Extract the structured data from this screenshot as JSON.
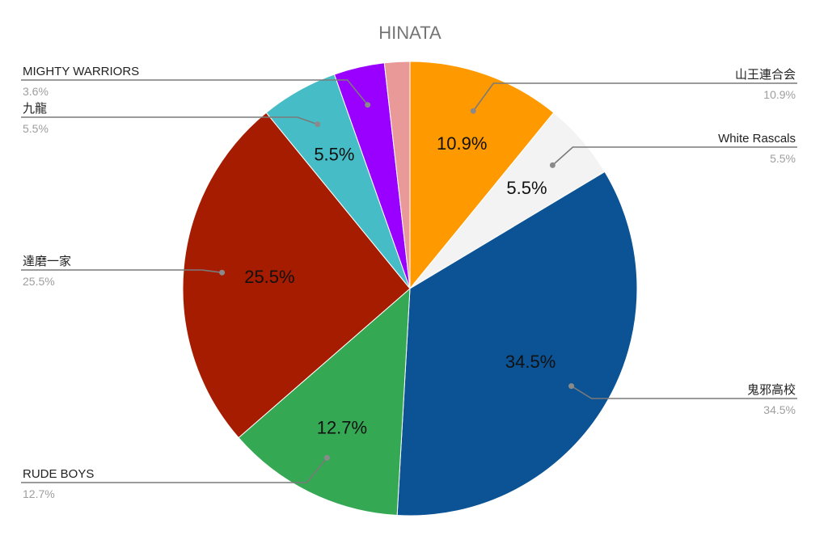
{
  "chart_data": {
    "type": "pie",
    "title": "HINATA",
    "start_angle_deg": 0,
    "direction": "clockwise",
    "slices": [
      {
        "name": "山王連合会",
        "value": 10.9,
        "label": "10.9%",
        "color": "#ff9900",
        "callout_side": "right"
      },
      {
        "name": "White Rascals",
        "value": 5.5,
        "label": "5.5%",
        "color": "#f3f3f3",
        "callout_side": "right"
      },
      {
        "name": "鬼邪高校",
        "value": 34.5,
        "label": "34.5%",
        "color": "#0b5394",
        "callout_side": "right"
      },
      {
        "name": "RUDE BOYS",
        "value": 12.7,
        "label": "12.7%",
        "color": "#34a853",
        "callout_side": "left"
      },
      {
        "name": "達磨一家",
        "value": 25.5,
        "label": "25.5%",
        "color": "#a61c00",
        "callout_side": "left"
      },
      {
        "name": "九龍",
        "value": 5.5,
        "label": "5.5%",
        "color": "#46bdc6",
        "callout_side": "left"
      },
      {
        "name": "MIGHTY WARRIORS",
        "value": 3.6,
        "label": "3.6%",
        "color": "#9900ff",
        "callout_side": "left"
      },
      {
        "name": "",
        "value": 1.8,
        "label": "",
        "color": "#ea9999",
        "callout_side": "none"
      }
    ],
    "legend": "callouts"
  }
}
